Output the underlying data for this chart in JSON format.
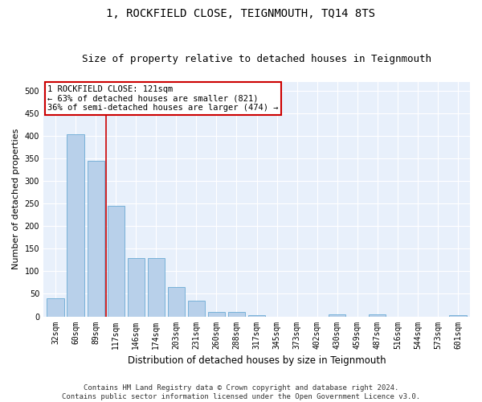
{
  "title": "1, ROCKFIELD CLOSE, TEIGNMOUTH, TQ14 8TS",
  "subtitle": "Size of property relative to detached houses in Teignmouth",
  "xlabel": "Distribution of detached houses by size in Teignmouth",
  "ylabel": "Number of detached properties",
  "categories": [
    "32sqm",
    "60sqm",
    "89sqm",
    "117sqm",
    "146sqm",
    "174sqm",
    "203sqm",
    "231sqm",
    "260sqm",
    "288sqm",
    "317sqm",
    "345sqm",
    "373sqm",
    "402sqm",
    "430sqm",
    "459sqm",
    "487sqm",
    "516sqm",
    "544sqm",
    "573sqm",
    "601sqm"
  ],
  "values": [
    40,
    403,
    345,
    245,
    130,
    130,
    65,
    35,
    10,
    10,
    2,
    0,
    0,
    0,
    5,
    0,
    5,
    0,
    0,
    0,
    2
  ],
  "bar_color": "#b8d0ea",
  "bar_edge_color": "#6aaad4",
  "background_color": "#e8f0fb",
  "grid_color": "#ffffff",
  "red_line_x": 2.5,
  "annotation_text": "1 ROCKFIELD CLOSE: 121sqm\n← 63% of detached houses are smaller (821)\n36% of semi-detached houses are larger (474) →",
  "annotation_box_facecolor": "#ffffff",
  "annotation_box_edgecolor": "#cc0000",
  "ylim": [
    0,
    520
  ],
  "yticks": [
    0,
    50,
    100,
    150,
    200,
    250,
    300,
    350,
    400,
    450,
    500
  ],
  "footer_line1": "Contains HM Land Registry data © Crown copyright and database right 2024.",
  "footer_line2": "Contains public sector information licensed under the Open Government Licence v3.0.",
  "title_fontsize": 10,
  "subtitle_fontsize": 9,
  "tick_fontsize": 7,
  "ylabel_fontsize": 8,
  "xlabel_fontsize": 8.5,
  "annotation_fontsize": 7.5,
  "footer_fontsize": 6.5
}
